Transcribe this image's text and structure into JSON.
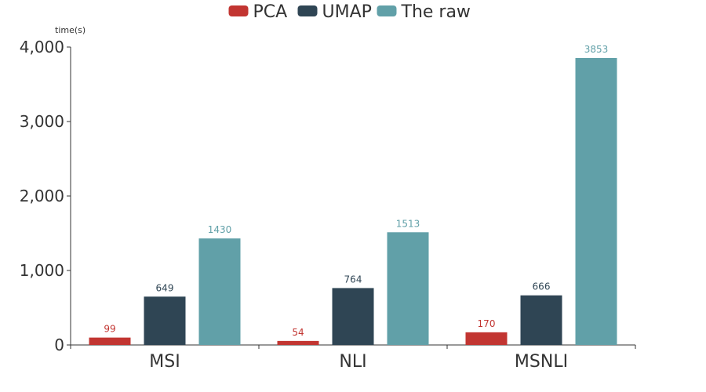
{
  "chart_data": {
    "type": "bar",
    "title": "",
    "xlabel": "",
    "ylabel": "time(s)",
    "categories": [
      "MSI",
      "NLI",
      "MSNLI"
    ],
    "series": [
      {
        "name": "PCA",
        "color": "#c23531",
        "values": [
          99,
          54,
          170
        ]
      },
      {
        "name": "UMAP",
        "color": "#2f4554",
        "values": [
          649,
          764,
          666
        ]
      },
      {
        "name": "The raw",
        "color": "#61a0a8",
        "values": [
          1430,
          1513,
          3853
        ]
      }
    ],
    "ylim": [
      0,
      4000
    ],
    "yticks": [
      0,
      1000,
      2000,
      3000,
      4000
    ],
    "ytick_labels": [
      "0",
      "1,000",
      "2,000",
      "3,000",
      "4,000"
    ],
    "grid": false,
    "legend": "top-center",
    "data_labels": true
  }
}
